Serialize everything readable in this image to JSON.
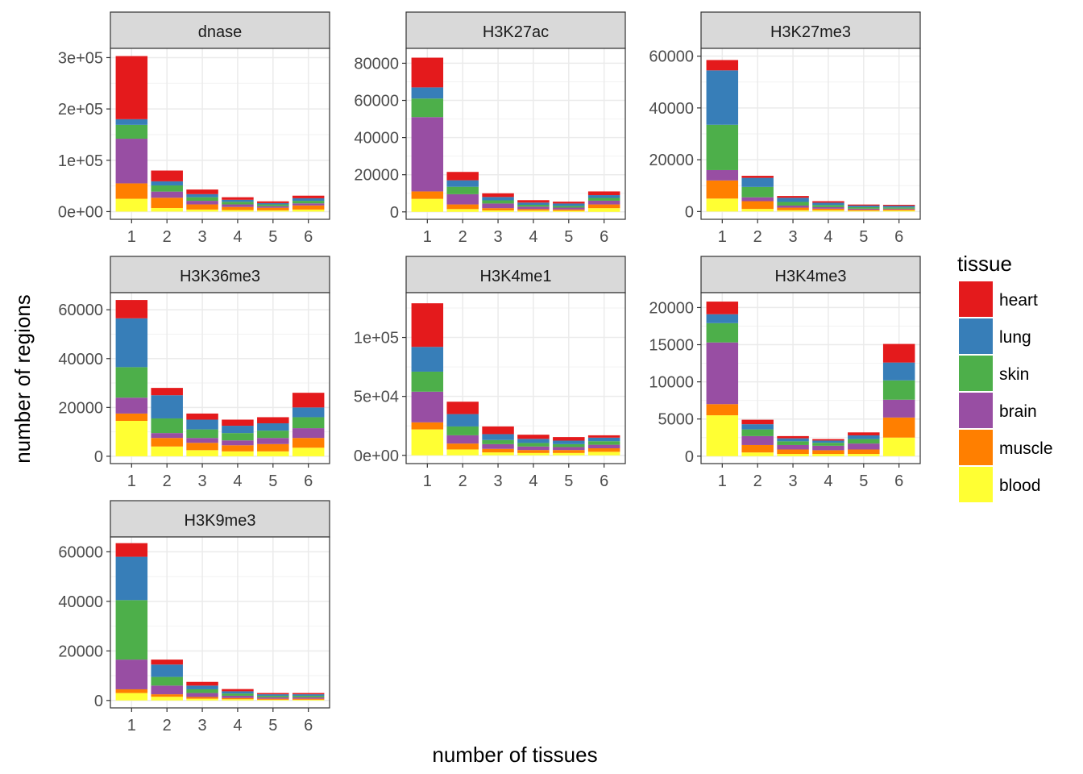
{
  "chart_data": {
    "type": "bar",
    "stacked": true,
    "xlabel": "number of tissues",
    "ylabel": "number of regions",
    "categories": [
      "1",
      "2",
      "3",
      "4",
      "5",
      "6"
    ],
    "legend": {
      "title": "tissue",
      "placement": "right",
      "items": [
        {
          "name": "heart",
          "color": "#E41A1C"
        },
        {
          "name": "lung",
          "color": "#377EB8"
        },
        {
          "name": "skin",
          "color": "#4DAF4A"
        },
        {
          "name": "brain",
          "color": "#984EA3"
        },
        {
          "name": "muscle",
          "color": "#FF7F00"
        },
        {
          "name": "blood",
          "color": "#FFFF33"
        }
      ]
    },
    "stack_order_bottom_to_top": [
      "blood",
      "muscle",
      "brain",
      "skin",
      "lung",
      "heart"
    ],
    "grid": true,
    "panels": [
      {
        "title": "dnase",
        "ylim": [
          -15000,
          318000
        ],
        "yticks": [
          0,
          100000,
          200000,
          300000
        ],
        "yticklabels": [
          "0e+00",
          "1e+05",
          "2e+05",
          "3e+05"
        ],
        "series": [
          {
            "name": "blood",
            "values": [
              25000,
              7000,
              4000,
              3000,
              2500,
              4000
            ]
          },
          {
            "name": "muscle",
            "values": [
              30000,
              20000,
              10000,
              6000,
              5000,
              8000
            ]
          },
          {
            "name": "brain",
            "values": [
              87000,
              12000,
              7000,
              5000,
              3000,
              4000
            ]
          },
          {
            "name": "skin",
            "values": [
              27000,
              12000,
              7000,
              5000,
              3500,
              5000
            ]
          },
          {
            "name": "lung",
            "values": [
              11000,
              8000,
              6000,
              4000,
              2500,
              5000
            ]
          },
          {
            "name": "heart",
            "values": [
              123000,
              21000,
              9000,
              5000,
              3500,
              5000
            ]
          }
        ]
      },
      {
        "title": "H3K27ac",
        "ylim": [
          -4000,
          88000
        ],
        "yticks": [
          0,
          20000,
          40000,
          60000,
          80000
        ],
        "yticklabels": [
          "0",
          "20000",
          "40000",
          "60000",
          "80000"
        ],
        "series": [
          {
            "name": "blood",
            "values": [
              7000,
              1500,
              800,
              700,
              600,
              2000
            ]
          },
          {
            "name": "muscle",
            "values": [
              4000,
              2500,
              1200,
              800,
              700,
              2000
            ]
          },
          {
            "name": "brain",
            "values": [
              40000,
              5500,
              2500,
              1300,
              1000,
              2000
            ]
          },
          {
            "name": "skin",
            "values": [
              10000,
              4000,
              1700,
              1000,
              900,
              1500
            ]
          },
          {
            "name": "lung",
            "values": [
              6000,
              3500,
              1800,
              1200,
              1300,
              1500
            ]
          },
          {
            "name": "heart",
            "values": [
              16000,
              4500,
              2000,
              1300,
              1000,
              2000
            ]
          }
        ]
      },
      {
        "title": "H3K27me3",
        "ylim": [
          -3000,
          63000
        ],
        "yticks": [
          0,
          20000,
          40000,
          60000
        ],
        "yticklabels": [
          "0",
          "20000",
          "40000",
          "60000"
        ],
        "series": [
          {
            "name": "blood",
            "values": [
              5000,
              1000,
              500,
              500,
              300,
              400
            ]
          },
          {
            "name": "muscle",
            "values": [
              7000,
              3000,
              1000,
              600,
              400,
              400
            ]
          },
          {
            "name": "brain",
            "values": [
              4000,
              1500,
              800,
              600,
              400,
              300
            ]
          },
          {
            "name": "skin",
            "values": [
              17500,
              4000,
              1400,
              800,
              600,
              500
            ]
          },
          {
            "name": "lung",
            "values": [
              21000,
              3500,
              1600,
              900,
              600,
              600
            ]
          },
          {
            "name": "heart",
            "values": [
              4000,
              800,
              700,
              600,
              400,
              400
            ]
          }
        ]
      },
      {
        "title": "H3K36me3",
        "ylim": [
          -3000,
          67000
        ],
        "yticks": [
          0,
          20000,
          40000,
          60000
        ],
        "yticklabels": [
          "0",
          "20000",
          "40000",
          "60000"
        ],
        "series": [
          {
            "name": "blood",
            "values": [
              14500,
              4000,
              2500,
              2000,
              2000,
              3500
            ]
          },
          {
            "name": "muscle",
            "values": [
              3000,
              3500,
              3000,
              2500,
              3000,
              4000
            ]
          },
          {
            "name": "brain",
            "values": [
              6500,
              2000,
              2000,
              2000,
              2500,
              4000
            ]
          },
          {
            "name": "skin",
            "values": [
              12500,
              6000,
              3500,
              3000,
              3000,
              4500
            ]
          },
          {
            "name": "lung",
            "values": [
              20000,
              9500,
              4000,
              3000,
              3000,
              4000
            ]
          },
          {
            "name": "heart",
            "values": [
              7500,
              3000,
              2500,
              2500,
              2500,
              6000
            ]
          }
        ]
      },
      {
        "title": "H3K4me1",
        "ylim": [
          -7000,
          138000
        ],
        "yticks": [
          0,
          50000,
          100000
        ],
        "yticklabels": [
          "0e+00",
          "5e+04",
          "1e+05"
        ],
        "series": [
          {
            "name": "blood",
            "values": [
              22000,
              5000,
              2500,
              2000,
              2000,
              3000
            ]
          },
          {
            "name": "muscle",
            "values": [
              6000,
              5000,
              3000,
              2500,
              2500,
              3000
            ]
          },
          {
            "name": "brain",
            "values": [
              26000,
              7000,
              4000,
              3000,
              2500,
              3000
            ]
          },
          {
            "name": "skin",
            "values": [
              17000,
              7500,
              3500,
              3000,
              2500,
              3000
            ]
          },
          {
            "name": "lung",
            "values": [
              21000,
              10500,
              5000,
              3500,
              3000,
              3000
            ]
          },
          {
            "name": "heart",
            "values": [
              37000,
              10500,
              6500,
              3500,
              3000,
              2000
            ]
          }
        ]
      },
      {
        "title": "H3K4me3",
        "ylim": [
          -1000,
          22000
        ],
        "yticks": [
          0,
          5000,
          10000,
          15000,
          20000
        ],
        "yticklabels": [
          "0",
          "5000",
          "10000",
          "15000",
          "20000"
        ],
        "series": [
          {
            "name": "blood",
            "values": [
              5500,
              500,
              300,
              300,
              300,
              2500
            ]
          },
          {
            "name": "muscle",
            "values": [
              1500,
              1000,
              600,
              500,
              600,
              2700
            ]
          },
          {
            "name": "brain",
            "values": [
              8300,
              1200,
              600,
              600,
              800,
              2400
            ]
          },
          {
            "name": "skin",
            "values": [
              2600,
              900,
              500,
              400,
              600,
              2600
            ]
          },
          {
            "name": "lung",
            "values": [
              1200,
              700,
              400,
              300,
              500,
              2400
            ]
          },
          {
            "name": "heart",
            "values": [
              1700,
              600,
              300,
              200,
              400,
              2500
            ]
          }
        ]
      },
      {
        "title": "H3K9me3",
        "ylim": [
          -3000,
          66000
        ],
        "yticks": [
          0,
          20000,
          40000,
          60000
        ],
        "yticklabels": [
          "0",
          "20000",
          "40000",
          "60000"
        ],
        "series": [
          {
            "name": "blood",
            "values": [
              3000,
              1500,
              700,
              500,
              300,
              300
            ]
          },
          {
            "name": "muscle",
            "values": [
              1500,
              1000,
              700,
              500,
              400,
              400
            ]
          },
          {
            "name": "brain",
            "values": [
              12000,
              3500,
              1600,
              900,
              600,
              600
            ]
          },
          {
            "name": "skin",
            "values": [
              24000,
              3500,
              1500,
              900,
              600,
              600
            ]
          },
          {
            "name": "lung",
            "values": [
              17500,
              5000,
              1500,
              900,
              600,
              600
            ]
          },
          {
            "name": "heart",
            "values": [
              5500,
              2000,
              1500,
              900,
              500,
              500
            ]
          }
        ]
      }
    ]
  }
}
